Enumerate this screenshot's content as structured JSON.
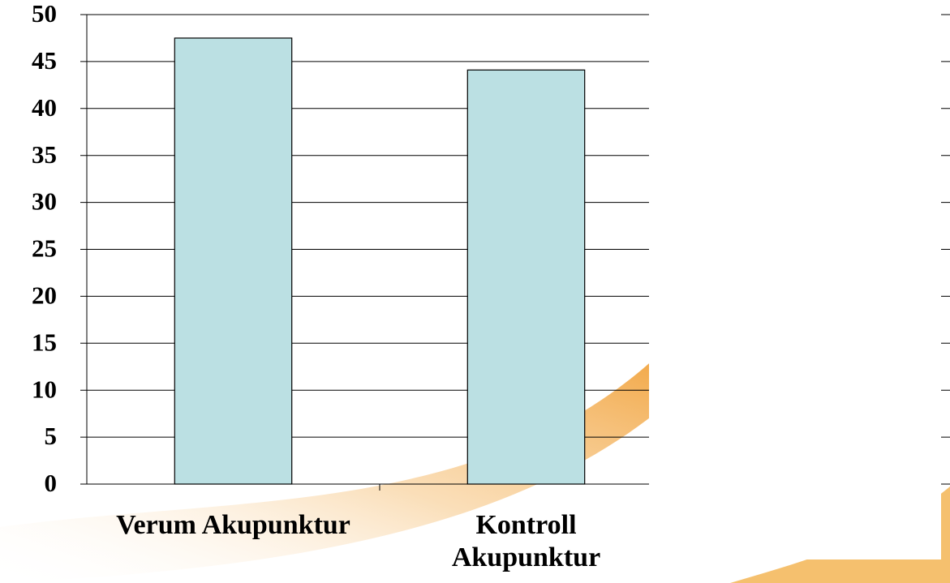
{
  "chart_data": {
    "type": "bar",
    "categories": [
      "Verum Akupunktur",
      "Kontroll Akupunktur"
    ],
    "values": [
      47.5,
      44.1
    ],
    "color": "#bbe0e3",
    "ylim": [
      0,
      50
    ],
    "yticks": [
      0,
      5,
      10,
      15,
      20,
      25,
      30,
      35,
      40,
      45,
      50
    ],
    "grid": true
  }
}
